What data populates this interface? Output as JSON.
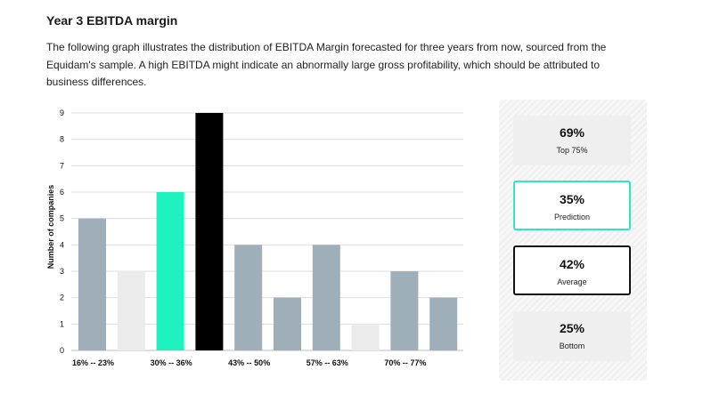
{
  "header": {
    "title": "Year 3 EBITDA margin",
    "description": "The following graph illustrates the distribution of EBITDA Margin forecasted for three years from now, sourced from the Equidam's sample. A high EBITDA might indicate an abnormally large gross profitability, which should be attributed to business differences."
  },
  "chart_data": {
    "type": "bar",
    "ylabel": "Number of companies",
    "xlabel": "",
    "ylim": [
      0,
      9
    ],
    "yticks": [
      0,
      1,
      2,
      3,
      4,
      5,
      6,
      7,
      8,
      9
    ],
    "grid": true,
    "categories": [
      "16% -- 23%",
      "",
      "30% -- 36%",
      "",
      "43% -- 50%",
      "",
      "57% -- 63%",
      "",
      "70% -- 77%",
      ""
    ],
    "values": [
      5,
      3,
      6,
      9,
      4,
      2,
      4,
      1,
      3,
      2
    ],
    "bar_colors": [
      "#9eafba",
      "#ebebeb",
      "#1ef2be",
      "#000000",
      "#9eafba",
      "#9eafba",
      "#9eafba",
      "#ebebeb",
      "#9eafba",
      "#9eafba"
    ],
    "x_tick_labels": [
      {
        "bar": 0,
        "label": "16% -- 23%"
      },
      {
        "bar": 2,
        "label": "30% -- 36%"
      },
      {
        "bar": 4,
        "label": "43% -- 50%"
      },
      {
        "bar": 6,
        "label": "57% -- 63%"
      },
      {
        "bar": 8,
        "label": "70% -- 77%"
      }
    ]
  },
  "stats": [
    {
      "key": "top",
      "value": "69%",
      "label": "Top 75%"
    },
    {
      "key": "prediction",
      "value": "35%",
      "label": "Prediction",
      "accent": "#2ee8c0"
    },
    {
      "key": "average",
      "value": "42%",
      "label": "Average",
      "accent": "#111111"
    },
    {
      "key": "bottom",
      "value": "25%",
      "label": "Bottom"
    }
  ]
}
